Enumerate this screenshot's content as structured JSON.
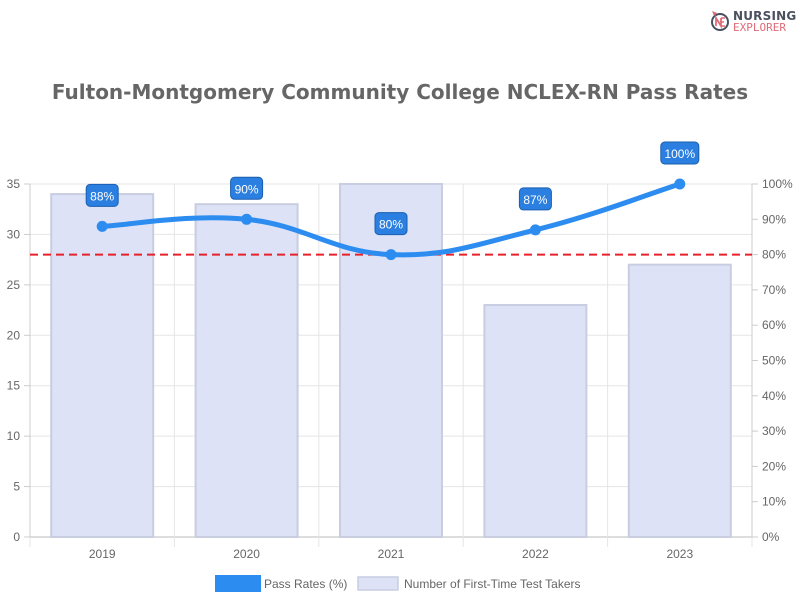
{
  "logo": {
    "line1": "NURSING",
    "line2": "EXPLORER"
  },
  "chart_data": {
    "type": "bar+line",
    "title": "Fulton-Montgomery Community College NCLEX-RN Pass Rates",
    "categories": [
      "2019",
      "2020",
      "2021",
      "2022",
      "2023"
    ],
    "series": [
      {
        "name": "Pass Rates (%)",
        "type": "line",
        "axis": "right",
        "values": [
          88,
          90,
          80,
          87,
          100
        ],
        "color": "#2d8cf0",
        "labels": [
          "88%",
          "90%",
          "80%",
          "87%",
          "100%"
        ]
      },
      {
        "name": "Number of First-Time Test Takers",
        "type": "bar",
        "axis": "left",
        "values": [
          34,
          33,
          35,
          23,
          27
        ],
        "color": "#dde2f7"
      }
    ],
    "reference_line": {
      "value_percent": 80,
      "color": "#e8202a",
      "style": "dashed"
    },
    "left_axis": {
      "ylim": [
        0,
        35
      ],
      "ticks": [
        "0",
        "5",
        "10",
        "15",
        "20",
        "25",
        "30",
        "35"
      ]
    },
    "right_axis": {
      "ylim": [
        0,
        100
      ],
      "ticks": [
        "0%",
        "10%",
        "20%",
        "30%",
        "40%",
        "50%",
        "60%",
        "70%",
        "80%",
        "90%",
        "100%"
      ]
    },
    "grid": true,
    "legend": "bottom"
  }
}
